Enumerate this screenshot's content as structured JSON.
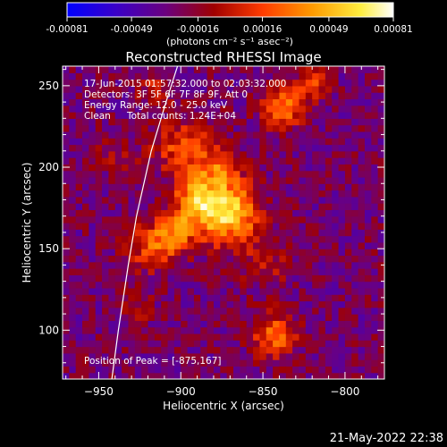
{
  "colorbar": {
    "ticks": [
      "-0.00081",
      "-0.00049",
      "-0.00016",
      "0.00016",
      "0.00049",
      "0.00081"
    ],
    "tick_values": [
      -0.00081,
      -0.00049,
      -0.00016,
      0.00016,
      0.00049,
      0.00081
    ],
    "range": [
      -0.00081,
      0.00081
    ],
    "unit_label": "(photons cm⁻² s⁻¹ asec⁻²)",
    "colors": [
      "#0000ff",
      "#3a00c8",
      "#6a0080",
      "#a00000",
      "#ff3c00",
      "#ff9a00",
      "#ffee40",
      "#ffffff"
    ]
  },
  "chart_data": {
    "type": "heatmap",
    "title": "Reconstructed RHESSI Image",
    "xlabel": "Heliocentric X (arcsec)",
    "ylabel": "Heliocentric Y (arcsec)",
    "xlim": [
      -972,
      -776
    ],
    "ylim": [
      70,
      262
    ],
    "x_ticks": [
      -950,
      -900,
      -850,
      -800
    ],
    "y_ticks": [
      100,
      150,
      200,
      250
    ],
    "x_tick_labels": [
      "−950",
      "−900",
      "−850",
      "−800"
    ],
    "y_tick_labels": [
      "100",
      "150",
      "200",
      "250"
    ],
    "annotations": [
      "17-Jun-2015 01:57:32.000 to 02:03:32.000",
      "Detectors: 3F 5F 6F 7F 8F 9F, Att 0",
      "Energy Range: 12.0 - 25.0 keV",
      "Clean",
      "Total counts: 1.24E+04"
    ],
    "peak_label": "Position of Peak = [-875,167]",
    "peak": [
      -875,
      167
    ],
    "sources": [
      {
        "x": -873,
        "y": 170,
        "sigma": 13,
        "amp": 0.00082
      },
      {
        "x": -892,
        "y": 178,
        "sigma": 10,
        "amp": 0.0006
      },
      {
        "x": -905,
        "y": 158,
        "sigma": 9,
        "amp": 0.00045
      },
      {
        "x": -920,
        "y": 150,
        "sigma": 10,
        "amp": 0.00042
      },
      {
        "x": -900,
        "y": 210,
        "sigma": 12,
        "amp": 0.00045
      },
      {
        "x": -878,
        "y": 198,
        "sigma": 9,
        "amp": 0.0004
      },
      {
        "x": -840,
        "y": 235,
        "sigma": 9,
        "amp": 0.00055
      },
      {
        "x": -822,
        "y": 250,
        "sigma": 6,
        "amp": 0.0004
      },
      {
        "x": -845,
        "y": 95,
        "sigma": 9,
        "amp": 0.0005
      },
      {
        "x": -850,
        "y": 140,
        "sigma": 10,
        "amp": 0.00022
      },
      {
        "x": -930,
        "y": 112,
        "sigma": 8,
        "amp": 0.00018
      },
      {
        "x": -940,
        "y": 205,
        "sigma": 9,
        "amp": 0.00016
      },
      {
        "x": -917,
        "y": 246,
        "sigma": 8,
        "amp": 0.00024
      }
    ],
    "background": -0.0003,
    "limb": [
      [
        -942,
        70
      ],
      [
        -938,
        100
      ],
      [
        -932,
        140
      ],
      [
        -927,
        170
      ],
      [
        -918,
        210
      ],
      [
        -909,
        240
      ],
      [
        -902,
        262
      ]
    ]
  },
  "timestamp": "21-May-2022 22:38"
}
